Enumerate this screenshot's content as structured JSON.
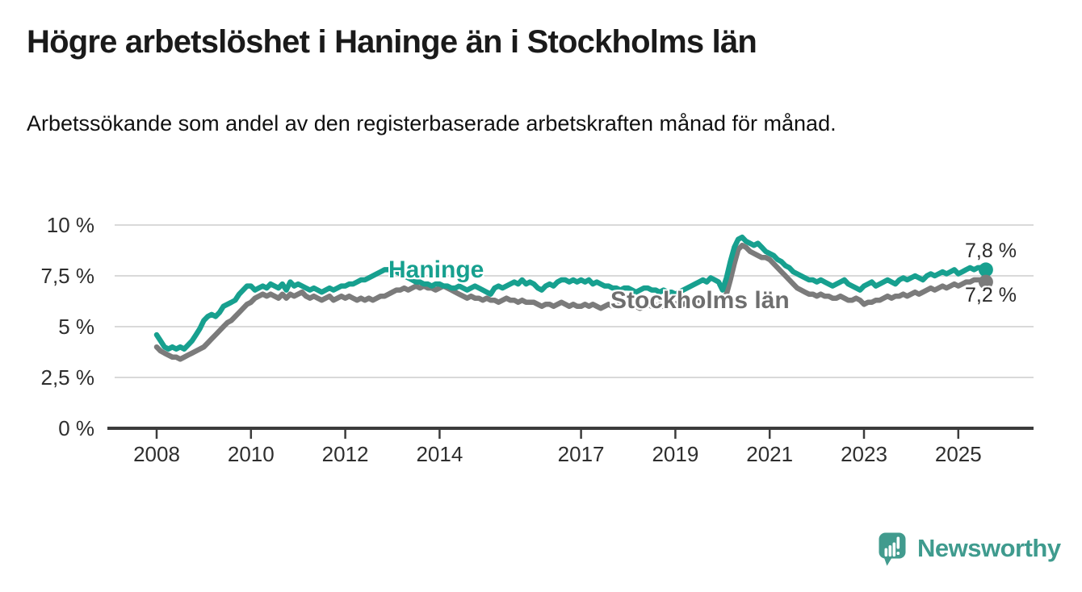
{
  "page": {
    "title": "Högre arbetslöshet i Haninge än i Stockholms län",
    "subtitle": "Arbetssökande som andel av den registerbaserade arbetskraften månad för månad.",
    "brand": "Newsworthy"
  },
  "chart_data": {
    "type": "line",
    "unit": "%",
    "frequency": "monthly",
    "x_start": "2008-01",
    "x_end": "2025-08",
    "ylim": [
      0,
      10
    ],
    "grid": "horizontal",
    "y_ticks": [
      "0 %",
      "2,5 %",
      "5 %",
      "7,5 %",
      "10 %"
    ],
    "y_tick_values": [
      0,
      2.5,
      5,
      7.5,
      10
    ],
    "x_ticks": [
      {
        "label": "2008",
        "year": 2008
      },
      {
        "label": "2010",
        "year": 2010
      },
      {
        "label": "2012",
        "year": 2012
      },
      {
        "label": "2014",
        "year": 2014
      },
      {
        "label": "2017",
        "year": 2017
      },
      {
        "label": "2019",
        "year": 2019
      },
      {
        "label": "2021",
        "year": 2021
      },
      {
        "label": "2023",
        "year": 2023
      },
      {
        "label": "2025",
        "year": 2025
      }
    ],
    "style": {
      "grid_color": "#d9d9d9",
      "axis_color": "#3c3c3c",
      "tick_text_color": "#2e2e2e",
      "value_text_color": "#2b2b2b",
      "logo_color": "#419b8e"
    },
    "series": [
      {
        "id": "haninge",
        "name": "Haninge",
        "color": "#17a08f",
        "end_label": "7,8 %",
        "end_value": 7.8,
        "values": [
          4.6,
          4.3,
          4.0,
          3.9,
          4.0,
          3.9,
          4.0,
          3.9,
          4.1,
          4.3,
          4.6,
          4.9,
          5.3,
          5.5,
          5.6,
          5.5,
          5.7,
          6.0,
          6.1,
          6.2,
          6.3,
          6.6,
          6.8,
          7.0,
          7.0,
          6.8,
          6.9,
          7.0,
          6.9,
          7.1,
          7.0,
          6.9,
          7.1,
          6.8,
          7.2,
          7.0,
          7.1,
          7.0,
          6.9,
          6.8,
          6.9,
          6.8,
          6.7,
          6.8,
          6.9,
          6.8,
          6.9,
          7.0,
          7.0,
          7.1,
          7.1,
          7.2,
          7.3,
          7.3,
          7.4,
          7.5,
          7.6,
          7.7,
          7.8,
          7.8,
          7.8,
          7.7,
          7.6,
          7.5,
          7.4,
          7.3,
          7.2,
          7.2,
          7.1,
          7.1,
          7.0,
          7.1,
          7.1,
          7.0,
          7.0,
          6.9,
          6.9,
          7.0,
          6.9,
          6.8,
          6.9,
          7.0,
          6.9,
          6.8,
          6.7,
          6.6,
          6.9,
          7.0,
          6.9,
          7.0,
          7.1,
          7.2,
          7.1,
          7.3,
          7.1,
          7.2,
          7.1,
          6.9,
          6.8,
          7.0,
          7.1,
          7.0,
          7.2,
          7.3,
          7.3,
          7.2,
          7.3,
          7.2,
          7.3,
          7.2,
          7.3,
          7.1,
          7.2,
          7.1,
          7.0,
          7.0,
          6.9,
          6.9,
          6.8,
          6.9,
          6.9,
          6.8,
          6.7,
          6.8,
          6.9,
          6.9,
          6.8,
          6.8,
          6.7,
          6.8,
          6.7,
          6.7,
          6.6,
          6.7,
          6.8,
          6.9,
          7.0,
          7.1,
          7.2,
          7.3,
          7.2,
          7.4,
          7.3,
          7.2,
          6.8,
          7.4,
          8.2,
          8.9,
          9.3,
          9.4,
          9.2,
          9.1,
          9.0,
          9.1,
          8.9,
          8.7,
          8.6,
          8.5,
          8.3,
          8.2,
          8.0,
          7.9,
          7.7,
          7.6,
          7.5,
          7.4,
          7.3,
          7.3,
          7.2,
          7.3,
          7.2,
          7.1,
          7.0,
          7.1,
          7.2,
          7.3,
          7.1,
          7.0,
          6.9,
          6.8,
          7.0,
          7.1,
          7.2,
          7.0,
          7.1,
          7.2,
          7.3,
          7.2,
          7.1,
          7.3,
          7.4,
          7.3,
          7.4,
          7.5,
          7.4,
          7.3,
          7.5,
          7.6,
          7.5,
          7.6,
          7.7,
          7.6,
          7.7,
          7.8,
          7.6,
          7.7,
          7.8,
          7.9,
          7.8,
          7.9,
          7.9,
          7.8
        ]
      },
      {
        "id": "stockholm",
        "name": "Stockholms län",
        "color": "#7b7b7b",
        "end_label": "7,2 %",
        "end_value": 7.2,
        "values": [
          4.0,
          3.8,
          3.7,
          3.6,
          3.5,
          3.5,
          3.4,
          3.5,
          3.6,
          3.7,
          3.8,
          3.9,
          4.0,
          4.2,
          4.4,
          4.6,
          4.8,
          5.0,
          5.2,
          5.3,
          5.5,
          5.7,
          5.9,
          6.1,
          6.2,
          6.4,
          6.5,
          6.6,
          6.5,
          6.6,
          6.5,
          6.4,
          6.6,
          6.4,
          6.6,
          6.5,
          6.6,
          6.7,
          6.5,
          6.4,
          6.5,
          6.4,
          6.3,
          6.4,
          6.5,
          6.3,
          6.4,
          6.5,
          6.4,
          6.5,
          6.4,
          6.3,
          6.4,
          6.3,
          6.4,
          6.3,
          6.4,
          6.5,
          6.5,
          6.6,
          6.7,
          6.8,
          6.8,
          6.9,
          6.8,
          6.9,
          7.0,
          6.9,
          7.0,
          6.9,
          6.9,
          6.8,
          6.9,
          7.0,
          6.9,
          6.8,
          6.7,
          6.6,
          6.5,
          6.4,
          6.5,
          6.4,
          6.4,
          6.3,
          6.4,
          6.3,
          6.3,
          6.2,
          6.3,
          6.4,
          6.3,
          6.3,
          6.2,
          6.3,
          6.2,
          6.2,
          6.2,
          6.1,
          6.0,
          6.1,
          6.1,
          6.0,
          6.1,
          6.2,
          6.1,
          6.0,
          6.1,
          6.0,
          6.0,
          6.1,
          6.0,
          6.1,
          6.0,
          5.9,
          6.0,
          6.1,
          6.0,
          6.0,
          6.1,
          6.1,
          6.1,
          6.0,
          6.0,
          5.9,
          6.0,
          6.1,
          6.0,
          6.0,
          6.1,
          6.0,
          6.1,
          6.1,
          6.1,
          6.2,
          6.1,
          6.2,
          6.2,
          6.3,
          6.3,
          6.2,
          6.3,
          6.4,
          6.3,
          6.4,
          6.4,
          6.6,
          7.3,
          8.1,
          8.8,
          9.0,
          8.9,
          8.7,
          8.6,
          8.5,
          8.4,
          8.4,
          8.3,
          8.1,
          7.9,
          7.7,
          7.5,
          7.3,
          7.1,
          6.9,
          6.8,
          6.7,
          6.6,
          6.6,
          6.5,
          6.6,
          6.5,
          6.5,
          6.4,
          6.4,
          6.5,
          6.4,
          6.3,
          6.3,
          6.4,
          6.3,
          6.1,
          6.2,
          6.2,
          6.3,
          6.3,
          6.4,
          6.5,
          6.4,
          6.5,
          6.5,
          6.6,
          6.5,
          6.6,
          6.7,
          6.6,
          6.7,
          6.8,
          6.9,
          6.8,
          6.9,
          7.0,
          6.9,
          7.0,
          7.1,
          7.0,
          7.1,
          7.2,
          7.2,
          7.3,
          7.3,
          7.3,
          7.2
        ]
      }
    ]
  }
}
